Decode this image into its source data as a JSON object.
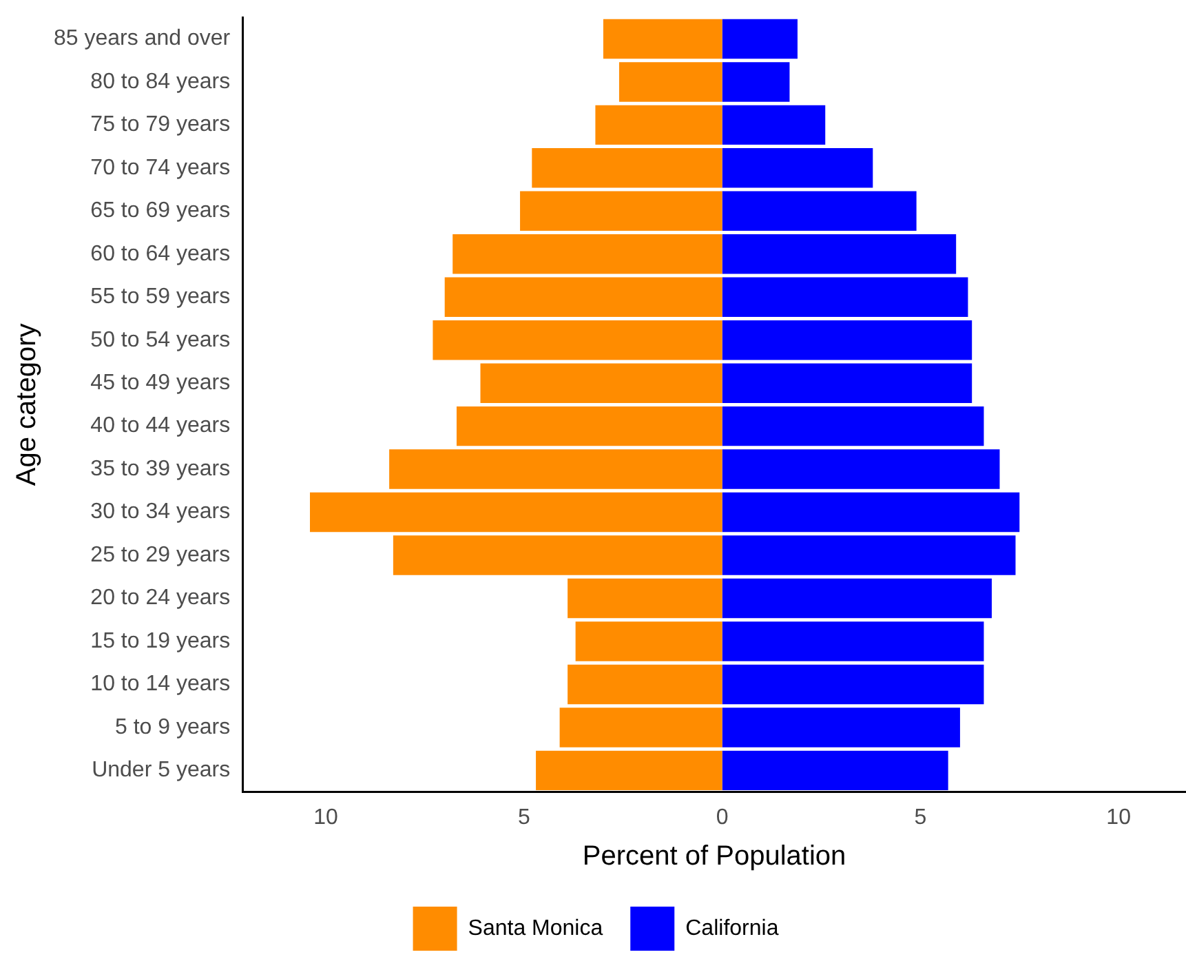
{
  "chart_data": {
    "type": "bar",
    "orientation": "horizontal",
    "stacked": true,
    "xlabel": "Percent of Population",
    "ylabel": "Age category",
    "categories": [
      "85 years and over",
      "80 to 84 years",
      "75 to 79 years",
      "70 to 74 years",
      "65 to 69 years",
      "60 to 64 years",
      "55 to 59 years",
      "50 to 54 years",
      "45 to 49 years",
      "40 to 44 years",
      "35 to 39 years",
      "30 to 34 years",
      "25 to 29 years",
      "20 to 24 years",
      "15 to 19 years",
      "10 to 14 years",
      "5 to 9 years",
      "Under 5 years"
    ],
    "series": [
      {
        "name": "Santa Monica",
        "color": "#ff8c00",
        "values": [
          -3.0,
          -2.6,
          -3.2,
          -4.8,
          -5.1,
          -6.8,
          -7.0,
          -7.3,
          -6.1,
          -6.7,
          -8.4,
          -10.4,
          -8.3,
          -3.9,
          -3.7,
          -3.9,
          -4.1,
          -4.7
        ]
      },
      {
        "name": "California",
        "color": "#0000ff",
        "values": [
          1.9,
          1.7,
          2.6,
          3.8,
          4.9,
          5.9,
          6.2,
          6.3,
          6.3,
          6.6,
          7.0,
          7.5,
          7.4,
          6.8,
          6.6,
          6.6,
          6.0,
          5.7
        ]
      }
    ],
    "xlim": [
      -12.1,
      11.7
    ],
    "xticks": [
      {
        "value": -10,
        "label": "10"
      },
      {
        "value": -5,
        "label": "5"
      },
      0,
      5,
      10
    ],
    "grid": false,
    "legend": "bottom"
  }
}
